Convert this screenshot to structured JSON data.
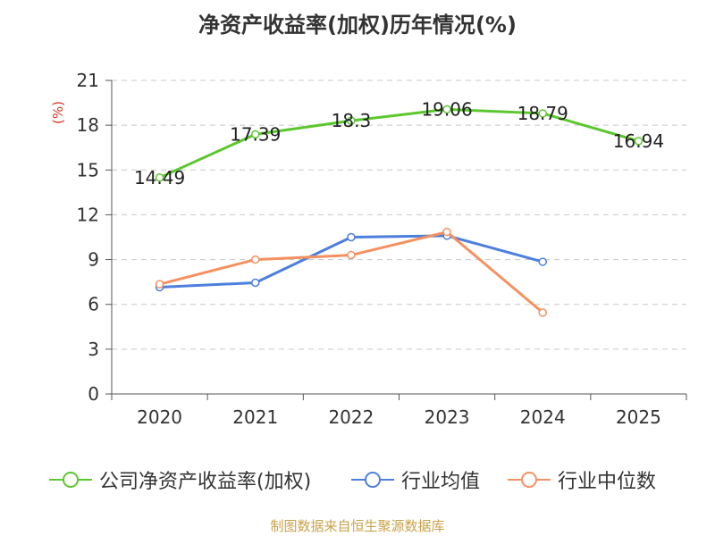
{
  "chart_data": {
    "type": "line",
    "title": "净资产收益率(加权)历年情况(%)",
    "ylabel": "(%)",
    "xlabel": "",
    "categories": [
      "2020",
      "2021",
      "2022",
      "2023",
      "2024",
      "2025"
    ],
    "ylim": [
      0,
      21
    ],
    "yticks": [
      0,
      3,
      6,
      9,
      12,
      15,
      18,
      21
    ],
    "grid": true,
    "legend_position": "bottom",
    "series": [
      {
        "name": "公司净资产收益率(加权)",
        "color": "#5cc72f",
        "values": [
          14.49,
          17.39,
          18.3,
          19.06,
          18.79,
          16.94
        ],
        "labels": [
          "14.49",
          "17.39",
          "18.3",
          "19.06",
          "18.79",
          "16.94"
        ]
      },
      {
        "name": "行业均值",
        "color": "#4e7fdc",
        "values": [
          7.15,
          7.45,
          10.5,
          10.6,
          8.85,
          null
        ]
      },
      {
        "name": "行业中位数",
        "color": "#f59060",
        "values": [
          7.35,
          9.0,
          9.3,
          10.85,
          5.45,
          null
        ]
      }
    ]
  },
  "source": "制图数据来自恒生聚源数据库"
}
